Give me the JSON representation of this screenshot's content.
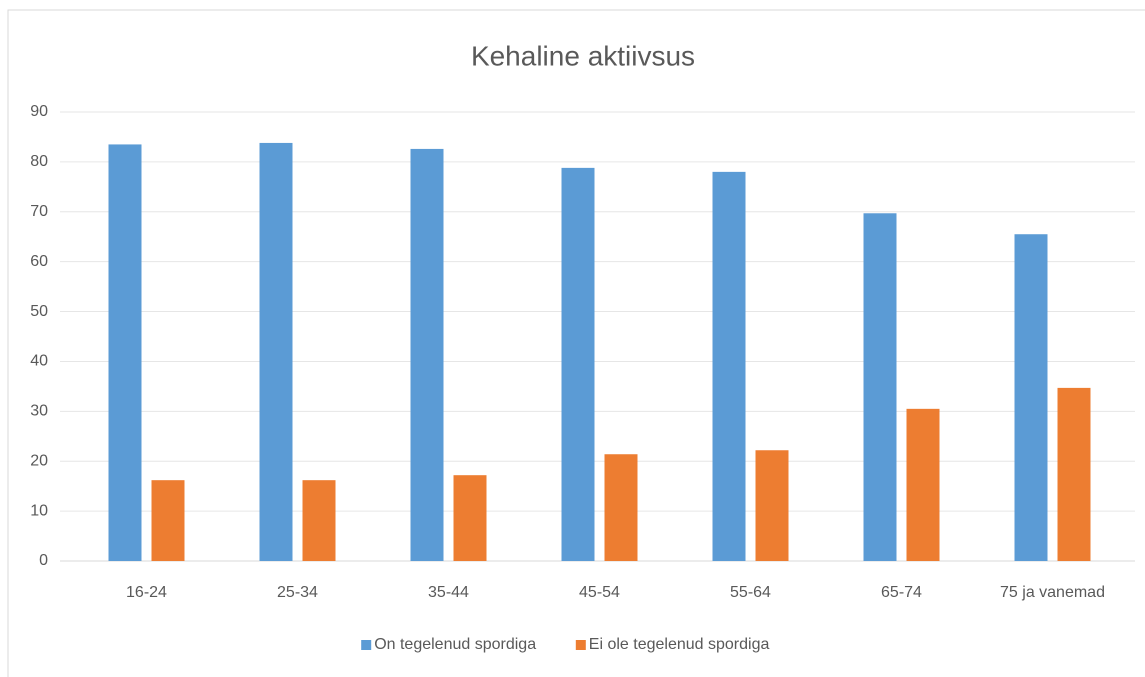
{
  "chart_data": {
    "type": "bar",
    "title": "Kehaline aktiivsus",
    "categories": [
      "16-24",
      "25-34",
      "35-44",
      "45-54",
      "55-64",
      "65-74",
      "75 ja vanemad"
    ],
    "series": [
      {
        "name": "On tegelenud spordiga",
        "color": "#5b9bd5",
        "values": [
          83.5,
          83.8,
          82.6,
          78.8,
          78.0,
          69.7,
          65.5
        ]
      },
      {
        "name": "Ei ole tegelenud spordiga",
        "color": "#ed7d31",
        "values": [
          16.2,
          16.2,
          17.2,
          21.4,
          22.2,
          30.5,
          34.7
        ]
      }
    ],
    "ylim": [
      0,
      90
    ],
    "yticks": [
      0,
      10,
      20,
      30,
      40,
      50,
      60,
      70,
      80,
      90
    ],
    "grid": true,
    "legend": "bottom"
  }
}
